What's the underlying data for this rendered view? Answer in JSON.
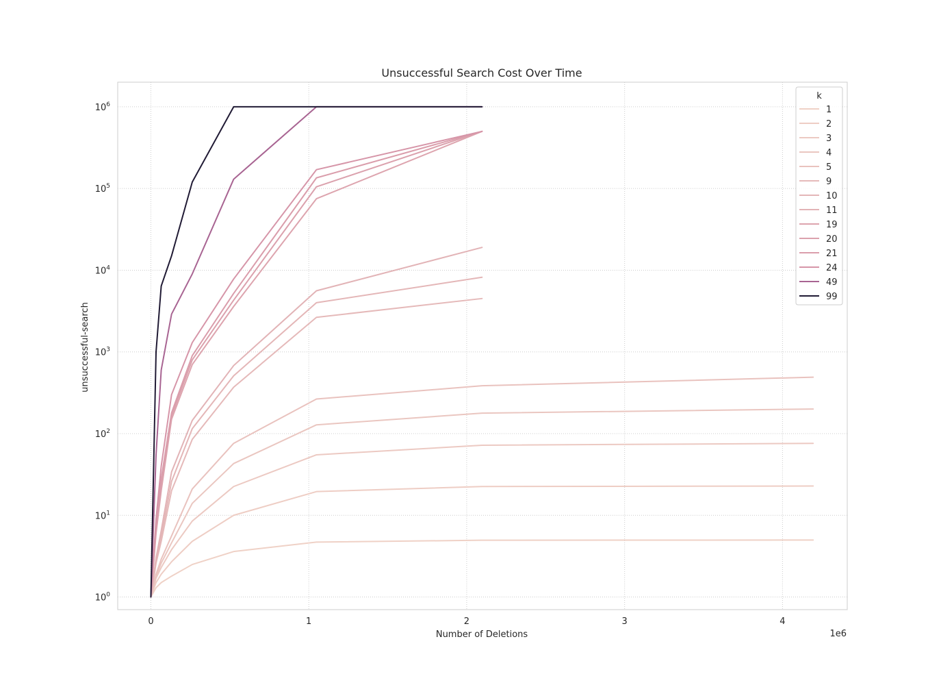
{
  "chart_data": {
    "type": "line",
    "title": "Unsuccessful Search Cost Over Time",
    "xlabel": "Number of Deletions",
    "ylabel": "unsuccessful-search",
    "x_offset_text": "1e6",
    "x_scale": "linear",
    "y_scale": "log",
    "xlim": [
      -210000,
      4410000
    ],
    "ylim": [
      0.7,
      2000000
    ],
    "x_ticks": [
      0,
      1000000,
      2000000,
      3000000,
      4000000
    ],
    "x_tick_labels": [
      "0",
      "1",
      "2",
      "3",
      "4"
    ],
    "y_ticks": [
      1,
      10,
      100,
      1000,
      10000,
      100000,
      1000000
    ],
    "y_tick_labels": [
      [
        "10",
        "0"
      ],
      [
        "10",
        "1"
      ],
      [
        "10",
        "2"
      ],
      [
        "10",
        "3"
      ],
      [
        "10",
        "4"
      ],
      [
        "10",
        "5"
      ],
      [
        "10",
        "6"
      ]
    ],
    "grid": true,
    "legend": {
      "title": "k",
      "placement": "top-right"
    },
    "series": [
      {
        "name": "1",
        "color": "#efd1c6",
        "x": [
          0,
          32768,
          65536,
          131072,
          262144,
          524288,
          1048576,
          2097152,
          4194304
        ],
        "y": [
          1,
          1.3,
          1.5,
          1.8,
          2.5,
          3.6,
          4.7,
          4.95,
          4.98
        ]
      },
      {
        "name": "2",
        "color": "#eecdc4",
        "x": [
          0,
          32768,
          65536,
          131072,
          262144,
          524288,
          1048576,
          2097152,
          4194304
        ],
        "y": [
          1,
          1.5,
          1.9,
          2.7,
          4.8,
          10,
          19.5,
          22.5,
          22.8
        ]
      },
      {
        "name": "3",
        "color": "#ecc9c2",
        "x": [
          0,
          32768,
          65536,
          131072,
          262144,
          524288,
          1048576,
          2097152,
          4194304
        ],
        "y": [
          1,
          1.7,
          2.3,
          3.8,
          8.5,
          22.5,
          55,
          72,
          76
        ]
      },
      {
        "name": "4",
        "color": "#eac6c0",
        "x": [
          0,
          32768,
          65536,
          131072,
          262144,
          524288,
          1048576,
          2097152,
          4194304
        ],
        "y": [
          1,
          1.8,
          2.6,
          4.6,
          14,
          43,
          128,
          178,
          200
        ]
      },
      {
        "name": "5",
        "color": "#e9c2be",
        "x": [
          0,
          32768,
          65536,
          131072,
          262144,
          524288,
          1048576,
          2097152,
          4194304
        ],
        "y": [
          1,
          1.9,
          2.9,
          5.6,
          21,
          76,
          265,
          385,
          490
        ]
      },
      {
        "name": "9",
        "color": "#e5b9b9",
        "x": [
          0,
          32768,
          65536,
          131072,
          262144,
          524288,
          1048576,
          2097152
        ],
        "y": [
          1,
          2.6,
          4.8,
          20,
          85,
          370,
          2650,
          4500
        ]
      },
      {
        "name": "10",
        "color": "#e4b6b7",
        "x": [
          0,
          32768,
          65536,
          131072,
          262144,
          524288,
          1048576,
          2097152
        ],
        "y": [
          1,
          2.8,
          5.5,
          26,
          115,
          510,
          4000,
          8200
        ]
      },
      {
        "name": "11",
        "color": "#e2b3b6",
        "x": [
          0,
          32768,
          65536,
          131072,
          262144,
          524288,
          1048576,
          2097152
        ],
        "y": [
          1,
          3.0,
          6.5,
          34,
          145,
          680,
          5600,
          19000
        ]
      },
      {
        "name": "19",
        "color": "#dda4ae",
        "x": [
          0,
          32768,
          65536,
          131072,
          262144,
          524288,
          1048576,
          2097152
        ],
        "y": [
          1,
          6,
          20,
          150,
          700,
          3600,
          75000,
          500000
        ]
      },
      {
        "name": "20",
        "color": "#dba1ad",
        "x": [
          0,
          32768,
          65536,
          131072,
          262144,
          524288,
          1048576,
          2097152
        ],
        "y": [
          1,
          6.5,
          24,
          165,
          800,
          4300,
          105000,
          500000
        ]
      },
      {
        "name": "21",
        "color": "#da9dab",
        "x": [
          0,
          32768,
          65536,
          131072,
          262144,
          524288,
          1048576,
          2097152
        ],
        "y": [
          1,
          7,
          28,
          180,
          900,
          5200,
          135000,
          500000
        ]
      },
      {
        "name": "24",
        "color": "#d695a8",
        "x": [
          0,
          32768,
          65536,
          131072,
          262144,
          524288,
          1048576,
          2097152
        ],
        "y": [
          1,
          9,
          40,
          300,
          1300,
          7800,
          170000,
          500000
        ]
      },
      {
        "name": "49",
        "color": "#a86492",
        "x": [
          0,
          32768,
          65536,
          131072,
          262144,
          524288,
          1048576,
          2097152
        ],
        "y": [
          1,
          55,
          600,
          2900,
          9000,
          130000,
          1000000,
          1000000
        ]
      },
      {
        "name": "99",
        "color": "#201a34",
        "x": [
          0,
          32768,
          65536,
          131072,
          262144,
          524288,
          1048576,
          2097152
        ],
        "y": [
          1,
          1000,
          6400,
          15000,
          120000,
          1000000,
          1000000,
          1000000
        ]
      }
    ]
  }
}
